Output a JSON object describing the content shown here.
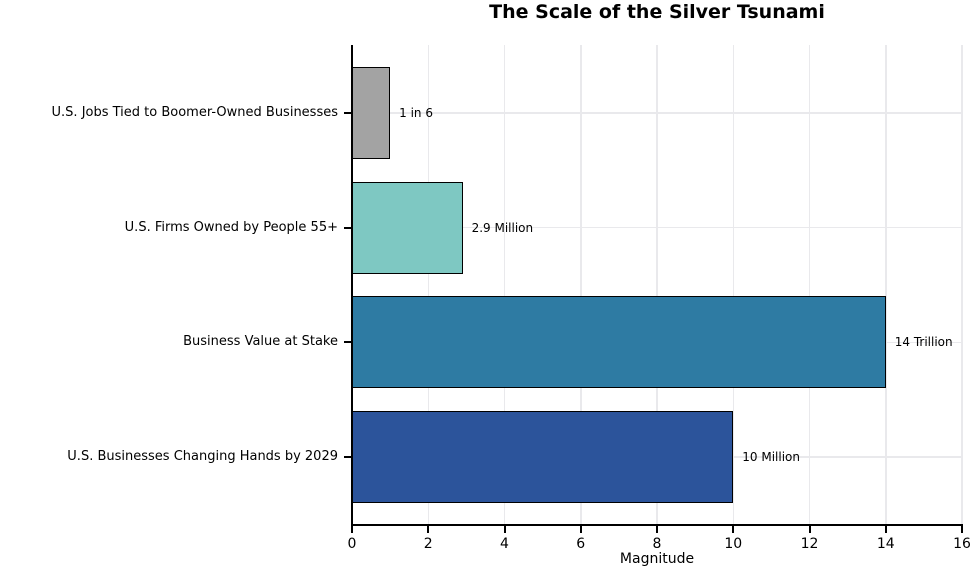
{
  "chart_data": {
    "type": "bar",
    "orientation": "horizontal",
    "title": "The Scale of the Silver Tsunami",
    "xlabel": "Magnitude",
    "xlim": [
      0,
      16
    ],
    "xticks": [
      0,
      2,
      4,
      6,
      8,
      10,
      12,
      14,
      16
    ],
    "grid": true,
    "grid_color": "#e9e9ec",
    "bar_edge_color": "#000000",
    "categories": [
      "U.S. Jobs Tied to Boomer-Owned Businesses",
      "U.S. Firms Owned by People 55+",
      "Business Value at Stake",
      "U.S. Businesses Changing Hands by 2029"
    ],
    "values": [
      1,
      2.9,
      14,
      10
    ],
    "value_labels": [
      "1 in 6",
      "2.9 Million",
      "14 Trillion",
      "10 Million"
    ],
    "bar_colors": [
      "#a3a3a3",
      "#7ec8c2",
      "#2e7ba3",
      "#2c549b"
    ],
    "legend": null
  }
}
